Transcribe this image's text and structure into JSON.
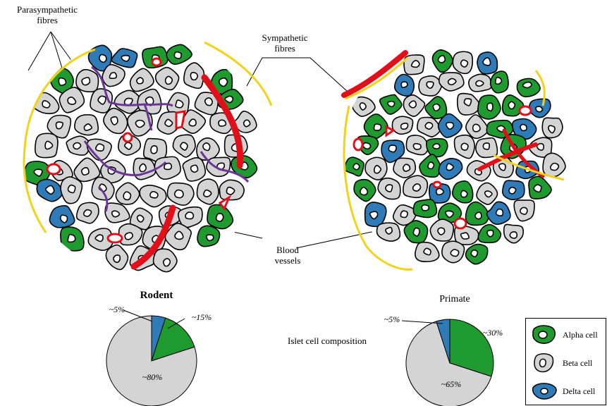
{
  "labels": {
    "parasympathetic": [
      "Parasympathetic",
      "fibres"
    ],
    "sympathetic": [
      "Sympathetic",
      "fibres"
    ],
    "blood_vessels": [
      "Blood",
      "vessels"
    ],
    "composition": "Islet cell composition"
  },
  "colors": {
    "alpha": "#1e9a2e",
    "beta": "#d4d4d4",
    "delta": "#2e7bb8",
    "vessel": "#e0101a",
    "sympathetic": "#f3d21a",
    "parasympathetic": "#6a3596"
  },
  "charts": [
    {
      "id": "rodent",
      "title": "Rodent",
      "slices": [
        {
          "cell": "beta",
          "value": 80,
          "label": "~80%"
        },
        {
          "cell": "delta",
          "value": 5,
          "label": "~5%"
        },
        {
          "cell": "alpha",
          "value": 15,
          "label": "~15%"
        }
      ]
    },
    {
      "id": "primate",
      "title": "Primate",
      "slices": [
        {
          "cell": "alpha",
          "value": 30,
          "label": "~30%"
        },
        {
          "cell": "beta",
          "value": 65,
          "label": "~65%"
        },
        {
          "cell": "delta",
          "value": 5,
          "label": "~5%"
        }
      ]
    }
  ],
  "legend": [
    {
      "cell": "alpha",
      "label": "Alpha cell",
      "icon": "alpha-cell-icon"
    },
    {
      "cell": "beta",
      "label": "Beta cell",
      "icon": "beta-cell-icon"
    },
    {
      "cell": "delta",
      "label": "Delta cell",
      "icon": "delta-cell-icon"
    }
  ]
}
